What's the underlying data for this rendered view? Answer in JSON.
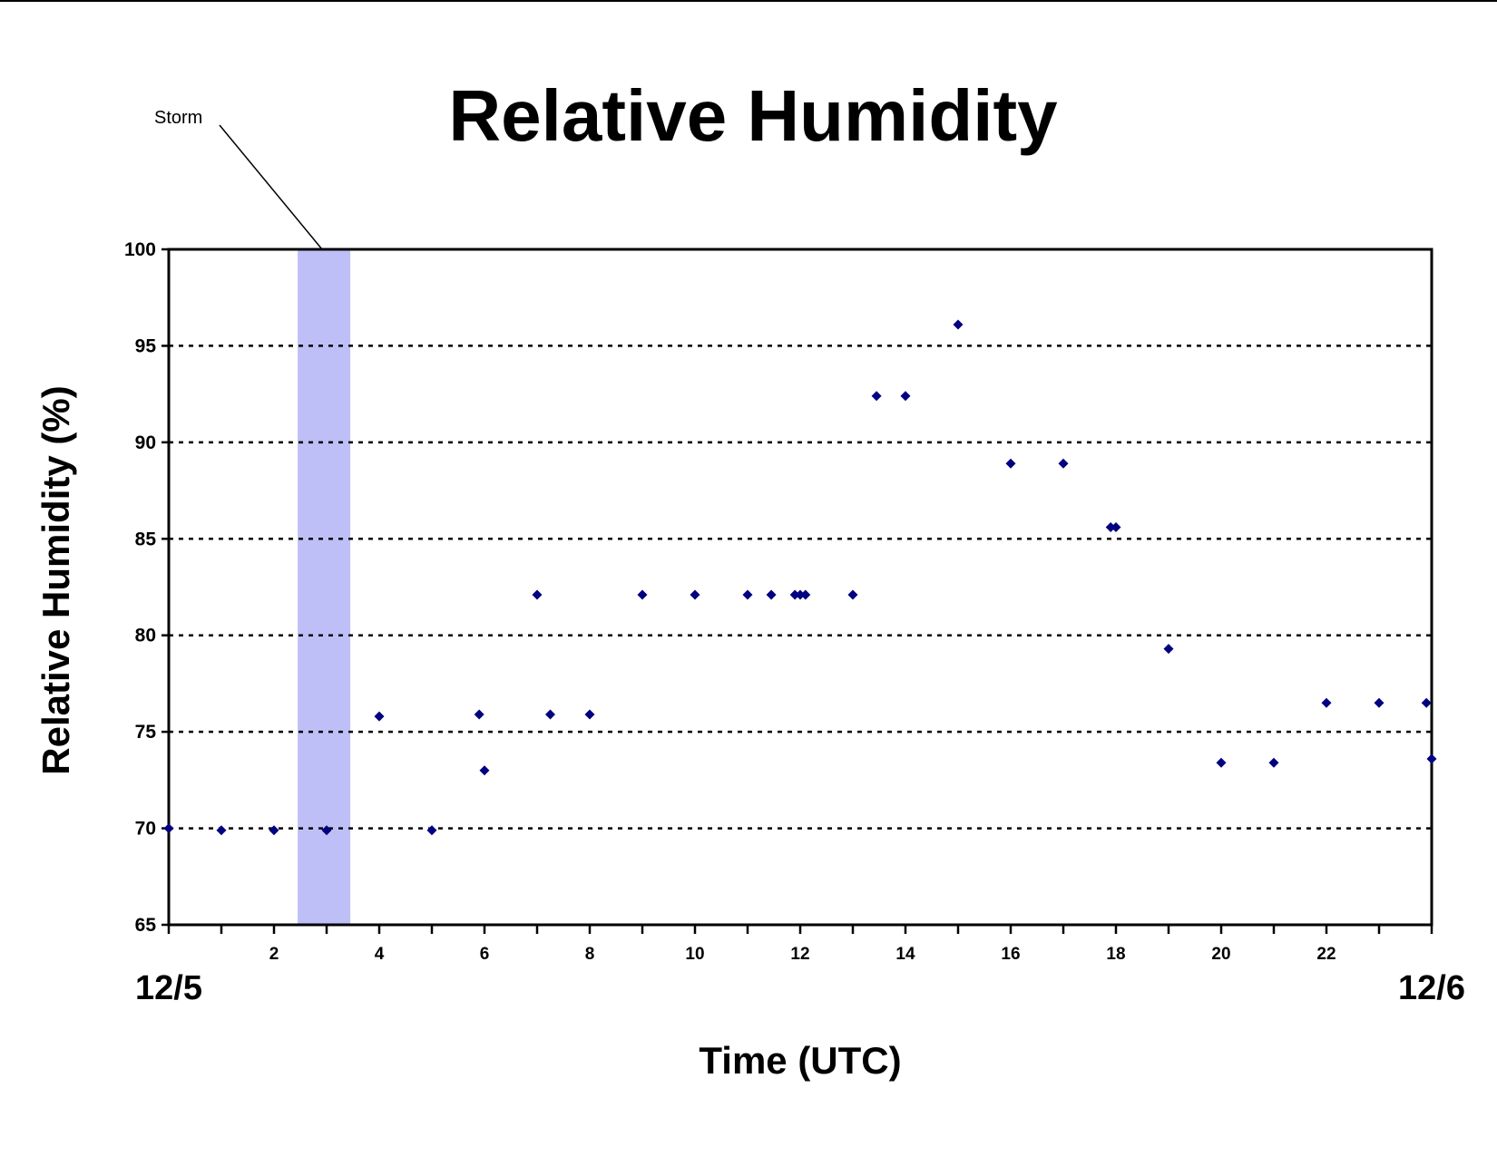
{
  "chart_data": {
    "type": "scatter",
    "title": "Relative Humidity",
    "xlabel": "Time (UTC)",
    "ylabel": "Relative Humidity (%)",
    "xlim": [
      0,
      24
    ],
    "ylim": [
      65,
      100
    ],
    "x_ticks": [
      "2",
      "4",
      "6",
      "8",
      "10",
      "12",
      "14",
      "16",
      "18",
      "20",
      "22"
    ],
    "y_ticks": [
      "65",
      "70",
      "75",
      "80",
      "85",
      "90",
      "95",
      "100"
    ],
    "grid": "horizontal dotted",
    "date_labels": {
      "start": "12/5",
      "end": "12/6"
    },
    "storm_band": {
      "label": "Storm",
      "x_start": 2.45,
      "x_end": 3.45,
      "color": "#bfbff7"
    },
    "marker_color": "#000080",
    "series": [
      {
        "x": [
          0,
          1,
          2,
          3,
          4,
          5,
          5.9,
          6,
          7,
          7.25,
          8,
          9,
          10,
          11,
          11.45,
          11.9,
          12,
          12.1,
          13,
          13.45,
          14,
          15,
          16,
          17,
          17.9,
          18,
          19,
          20,
          21,
          22,
          23,
          23.9,
          24
        ],
        "y": [
          70,
          69.9,
          69.9,
          69.9,
          75.8,
          69.9,
          75.9,
          73,
          82.1,
          75.9,
          75.9,
          82.1,
          82.1,
          82.1,
          82.1,
          82.1,
          82.1,
          82.1,
          82.1,
          92.4,
          92.4,
          96.1,
          88.9,
          88.9,
          85.6,
          85.6,
          79.3,
          73.4,
          73.4,
          76.5,
          76.5,
          76.5,
          73.6
        ]
      }
    ]
  }
}
